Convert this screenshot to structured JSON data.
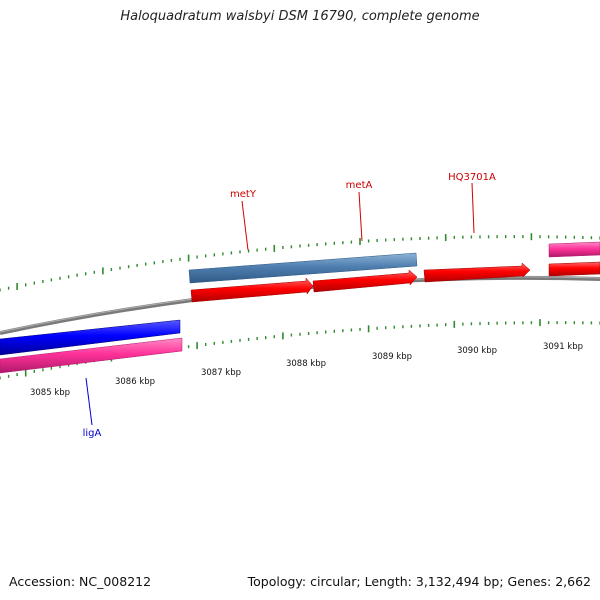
{
  "title": "Haloquadratum walsbyi DSM 16790, complete genome",
  "footer": {
    "accession": "Accession: NC_008212",
    "summary": "Topology: circular; Length: 3,132,494 bp; Genes: 2,662"
  },
  "colors": {
    "forward_cds": "#ff0000",
    "reverse_cds": "#0000ff",
    "rna_gene": "#ff3399",
    "gene_steelblue": "#4f7fb0",
    "backbone": "#808080",
    "tick": "#2e8b2e",
    "label_forward": "#cc0000",
    "label_reverse": "#0000cc"
  },
  "scale": {
    "unit": "kbp",
    "tick_labels": [
      "3085 kbp",
      "3086 kbp",
      "3087 kbp",
      "3088 kbp",
      "3089 kbp",
      "3090 kbp",
      "3091 kbp"
    ]
  },
  "gene_labels": [
    {
      "name": "metY",
      "strand": "forward"
    },
    {
      "name": "metA",
      "strand": "forward"
    },
    {
      "name": "HQ3701A",
      "strand": "forward"
    },
    {
      "name": "ligA",
      "strand": "reverse"
    }
  ]
}
